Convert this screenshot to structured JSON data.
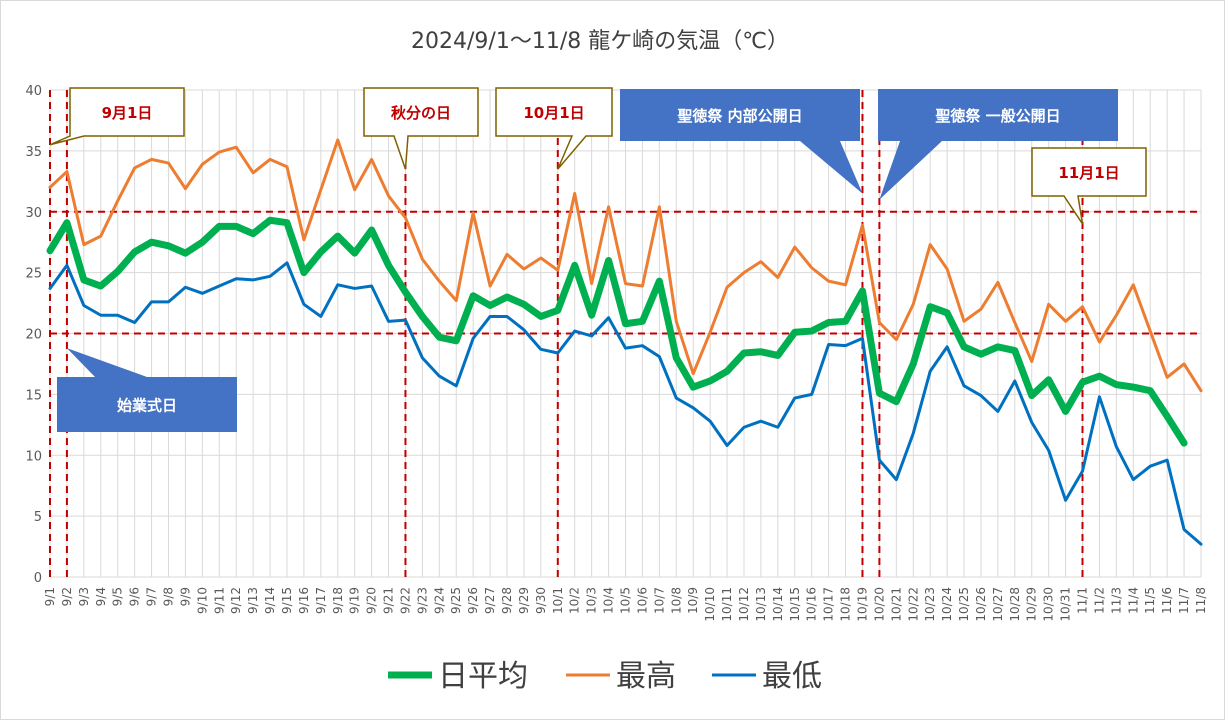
{
  "chart_data": {
    "type": "line",
    "title": "2024/9/1〜11/8 龍ケ崎の気温（℃）",
    "ylim": [
      0,
      40
    ],
    "yticks": [
      0,
      5,
      10,
      15,
      20,
      25,
      30,
      35,
      40
    ],
    "grid": true,
    "legend_position": "bottom",
    "x": [
      "9/1",
      "9/2",
      "9/3",
      "9/4",
      "9/5",
      "9/6",
      "9/7",
      "9/8",
      "9/9",
      "9/10",
      "9/11",
      "9/12",
      "9/13",
      "9/14",
      "9/15",
      "9/16",
      "9/17",
      "9/18",
      "9/19",
      "9/20",
      "9/21",
      "9/22",
      "9/23",
      "9/24",
      "9/25",
      "9/26",
      "9/27",
      "9/28",
      "9/29",
      "9/30",
      "10/1",
      "10/2",
      "10/3",
      "10/4",
      "10/5",
      "10/6",
      "10/7",
      "10/8",
      "10/9",
      "10/10",
      "10/11",
      "10/12",
      "10/13",
      "10/14",
      "10/15",
      "10/16",
      "10/17",
      "10/18",
      "10/19",
      "10/20",
      "10/21",
      "10/22",
      "10/23",
      "10/24",
      "10/25",
      "10/26",
      "10/27",
      "10/28",
      "10/29",
      "10/30",
      "10/31",
      "11/1",
      "11/2",
      "11/3",
      "11/4",
      "11/5",
      "11/6",
      "11/7",
      "11/8"
    ],
    "series": [
      {
        "name": "日平均",
        "color": "#00B050",
        "width": 7,
        "values": [
          26.8,
          29.1,
          24.4,
          23.9,
          25.1,
          26.7,
          27.5,
          27.2,
          26.6,
          27.5,
          28.8,
          28.8,
          28.2,
          29.3,
          29.1,
          25.0,
          26.7,
          28.0,
          26.6,
          28.5,
          25.6,
          23.4,
          21.4,
          19.7,
          19.4,
          23.1,
          22.3,
          23.0,
          22.4,
          21.4,
          21.9,
          25.6,
          21.5,
          26.0,
          20.8,
          21.0,
          24.3,
          18.0,
          15.6,
          16.1,
          16.9,
          18.4,
          18.5,
          18.2,
          20.1,
          20.2,
          20.9,
          21.0,
          23.5,
          15.1,
          14.4,
          17.5,
          22.2,
          21.7,
          18.9,
          18.3,
          18.9,
          18.6,
          14.9,
          16.2,
          13.6,
          16.0,
          16.5,
          15.8,
          15.6,
          15.3,
          13.2,
          11.0,
          null
        ]
      },
      {
        "name": "最高",
        "color": "#ED7D31",
        "width": 3,
        "values": [
          32.0,
          33.3,
          27.3,
          28.0,
          30.9,
          33.6,
          34.3,
          34.0,
          31.9,
          33.9,
          34.9,
          35.3,
          33.2,
          34.3,
          33.7,
          27.7,
          31.8,
          35.9,
          31.8,
          34.3,
          31.3,
          29.5,
          26.1,
          24.3,
          22.7,
          29.9,
          23.9,
          26.5,
          25.3,
          26.2,
          25.2,
          31.5,
          24.1,
          30.4,
          24.1,
          23.9,
          30.4,
          21.0,
          16.7,
          20.1,
          23.8,
          25.0,
          25.9,
          24.6,
          27.1,
          25.4,
          24.3,
          24.0,
          28.9,
          20.9,
          19.5,
          22.4,
          27.3,
          25.3,
          21.0,
          22.0,
          24.2,
          20.9,
          17.7,
          22.4,
          21.0,
          22.2,
          19.3,
          21.5,
          24.0,
          20.2,
          16.4,
          17.5,
          15.3
        ]
      },
      {
        "name": "最低",
        "color": "#0070C0",
        "width": 3,
        "values": [
          23.7,
          25.6,
          22.3,
          21.5,
          21.5,
          20.9,
          22.6,
          22.6,
          23.8,
          23.3,
          23.9,
          24.5,
          24.4,
          24.7,
          25.8,
          22.4,
          21.4,
          24.0,
          23.7,
          23.9,
          21.0,
          21.1,
          18.0,
          16.5,
          15.7,
          19.6,
          21.4,
          21.4,
          20.3,
          18.7,
          18.4,
          20.2,
          19.8,
          21.3,
          18.8,
          19.0,
          18.1,
          14.7,
          13.9,
          12.8,
          10.8,
          12.3,
          12.8,
          12.3,
          14.7,
          15.0,
          19.1,
          19.0,
          19.6,
          9.6,
          8.0,
          11.8,
          16.9,
          18.9,
          15.7,
          14.9,
          13.6,
          16.1,
          12.7,
          10.4,
          6.3,
          8.7,
          14.8,
          10.7,
          8.0,
          9.1,
          9.6,
          3.9,
          2.7
        ]
      }
    ],
    "reference_lines": {
      "horizontal": [
        20,
        30
      ],
      "vertical": [
        "9/1",
        "9/2",
        "9/22",
        "10/1",
        "10/19",
        "10/20",
        "11/1"
      ]
    },
    "annotations": [
      {
        "text": "9月1日",
        "style": "flag",
        "anchor_x": "9/1",
        "anchor_y": 35.5
      },
      {
        "text": "秋分の日",
        "style": "flag",
        "anchor_x": "9/22",
        "anchor_y": 33.5
      },
      {
        "text": "10月1日",
        "style": "flag",
        "anchor_x": "10/1",
        "anchor_y": 33.5
      },
      {
        "text": "聖徳祭 内部公開日",
        "style": "box",
        "anchor_x": "10/19",
        "anchor_y": 31.5
      },
      {
        "text": "聖徳祭 一般公開日",
        "style": "box",
        "anchor_x": "10/20",
        "anchor_y": 31.0
      },
      {
        "text": "11月1日",
        "style": "flag",
        "anchor_x": "11/1",
        "anchor_y": 29.0
      },
      {
        "text": "始業式日",
        "style": "box",
        "anchor_x": "9/2",
        "anchor_y": 18.8
      }
    ],
    "colors": {
      "flag_text": "#C00000",
      "flag_border": "#7F6000",
      "box_fill": "#4472C4",
      "box_text": "#FFFFFF",
      "ref_line": "#C00000",
      "grid": "#D9D9D9"
    }
  }
}
